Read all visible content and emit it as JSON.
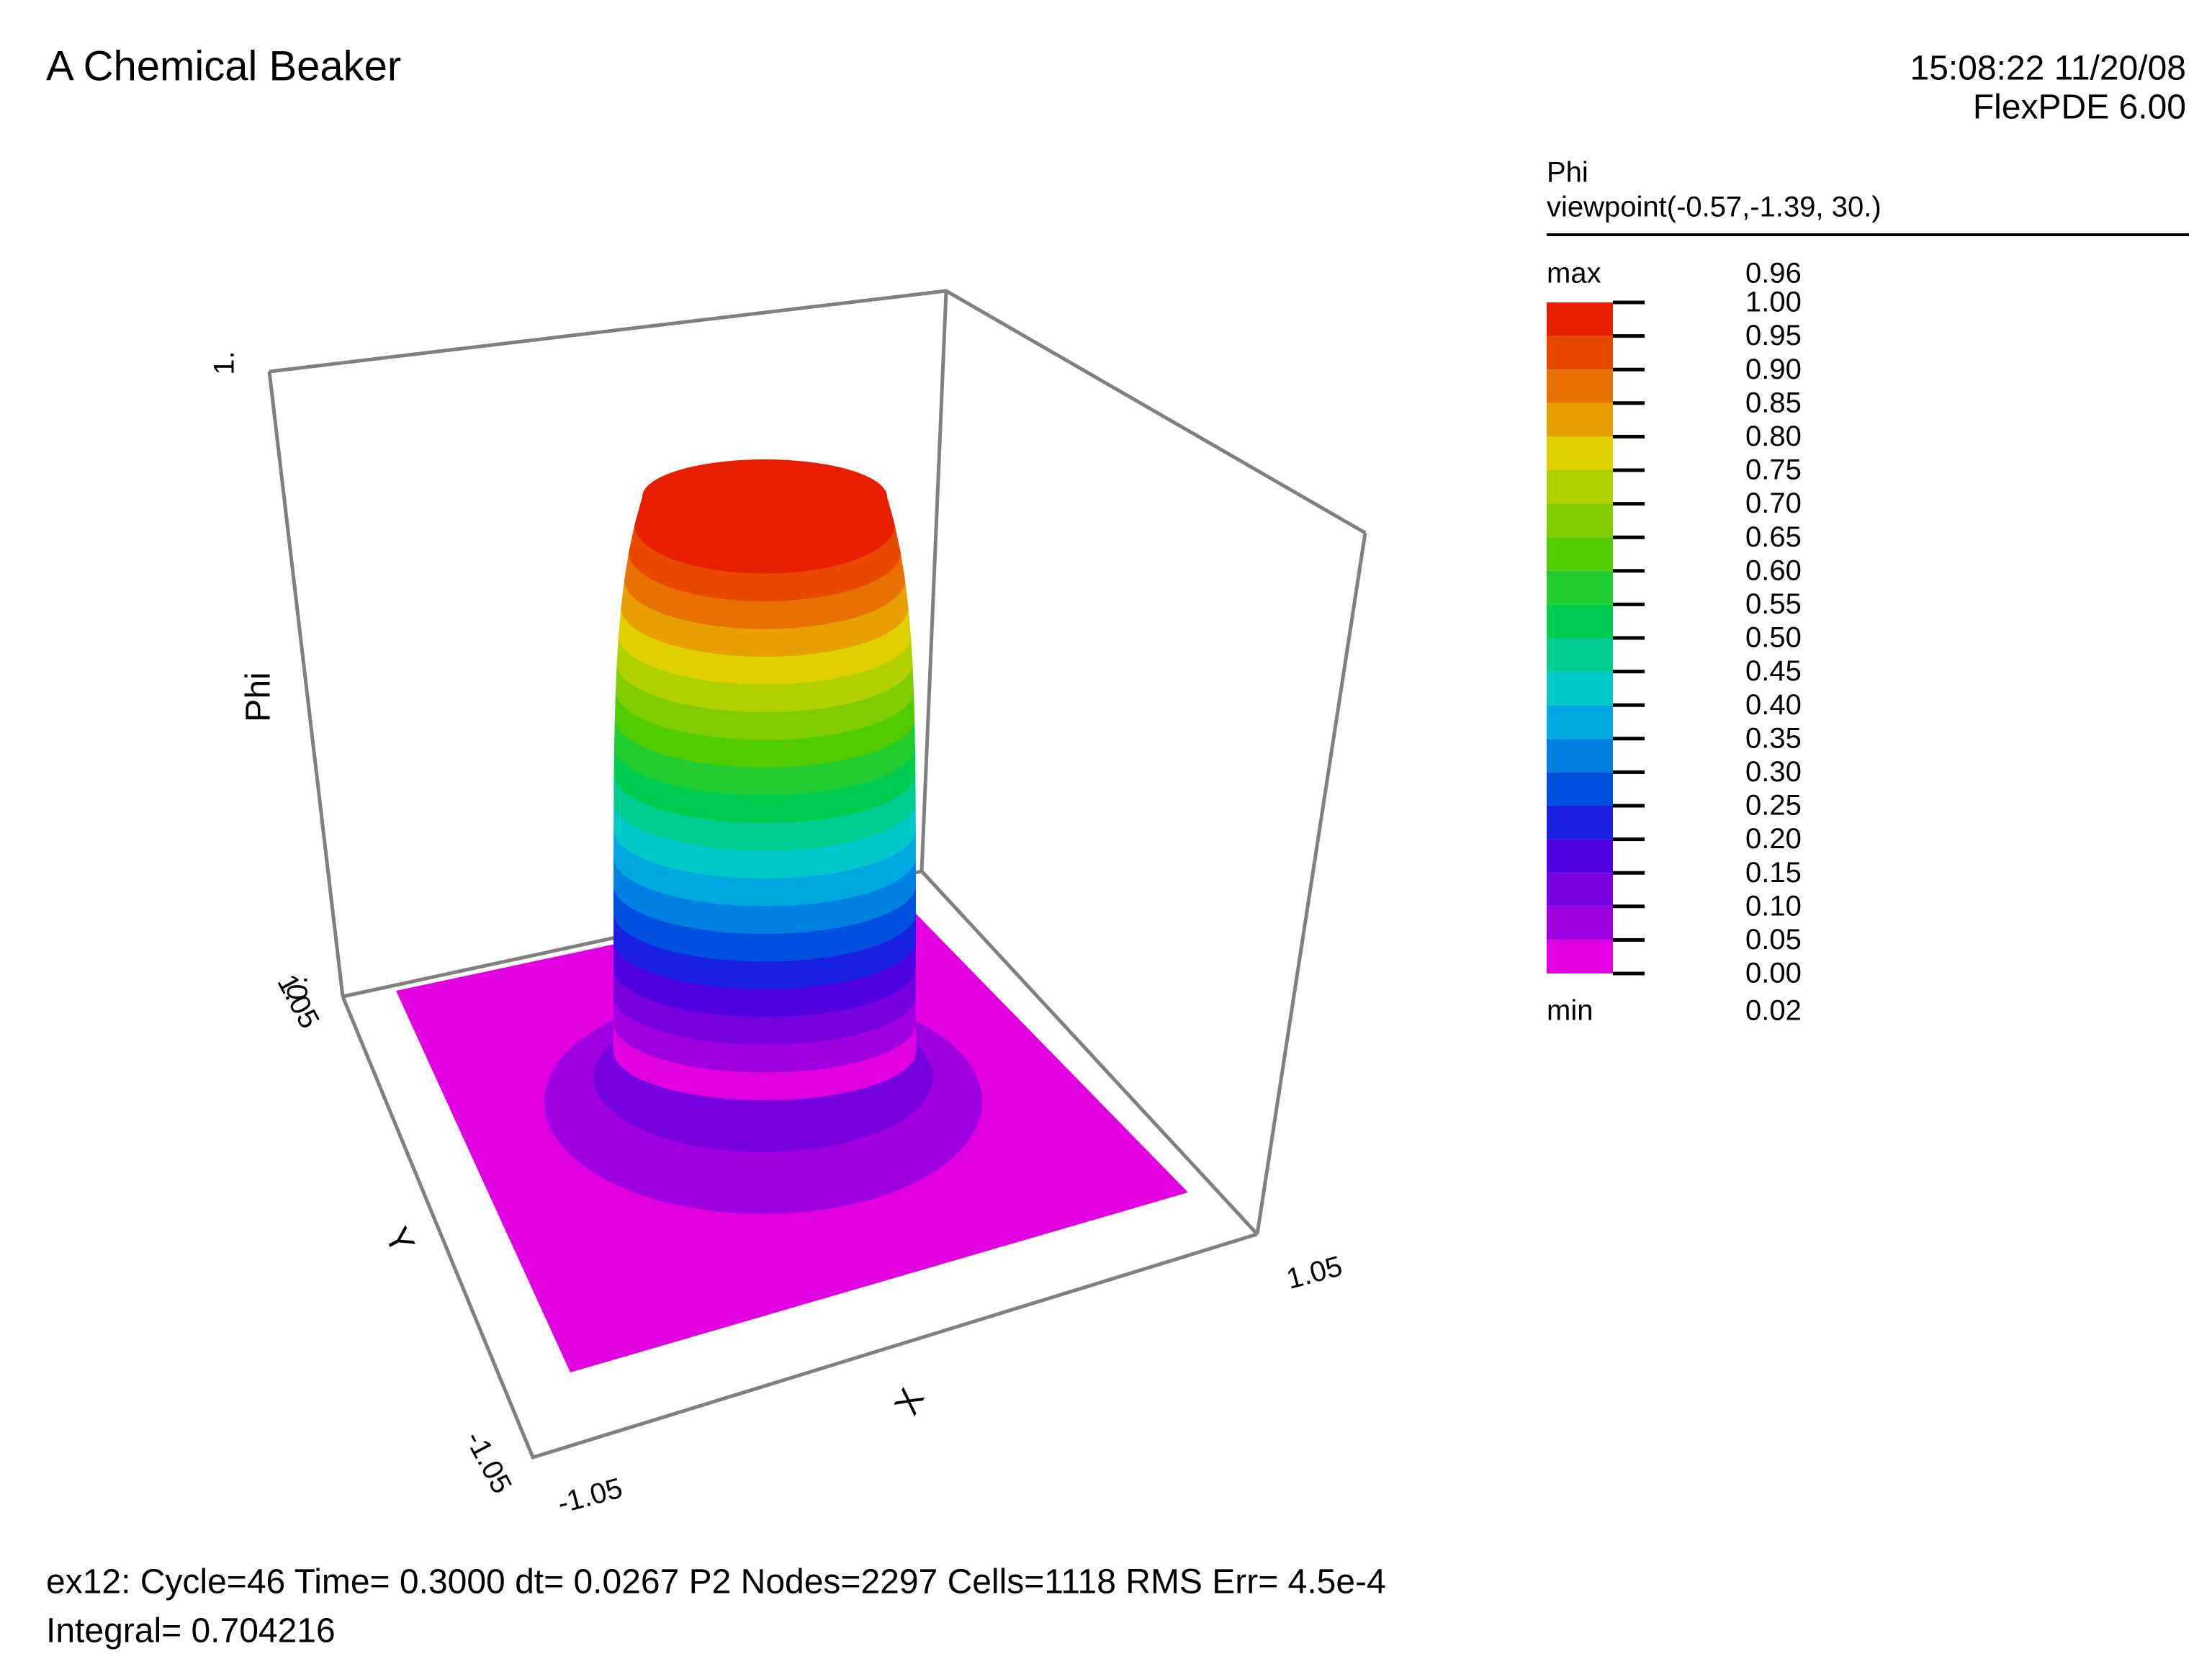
{
  "chart_data": {
    "type": "surface",
    "title": "A Chemical Beaker",
    "timestamp": "15:08:22 11/20/08",
    "software": "FlexPDE 6.00",
    "legend_title": "Phi",
    "viewpoint": "viewpoint(-0.57,-1.39, 30.)",
    "xlabel": "X",
    "ylabel": "Y",
    "zlabel": "Phi",
    "xlim": [
      -1.05,
      1.05
    ],
    "xticks": [
      -1.05,
      1.05
    ],
    "ylim": [
      -1.05,
      1.05
    ],
    "yticks": [
      -1.05,
      1.05
    ],
    "zlim": [
      0,
      1
    ],
    "zticks": [
      {
        "value": 0,
        "label": "0."
      },
      {
        "value": 1,
        "label": "1."
      }
    ],
    "max_label": "max",
    "max": 0.96,
    "min_label": "min",
    "min": 0.02,
    "levels": [
      {
        "value": 0,
        "label": "0.00"
      },
      {
        "value": 0.05,
        "label": "0.05"
      },
      {
        "value": 0.1,
        "label": "0.10"
      },
      {
        "value": 0.15,
        "label": "0.15"
      },
      {
        "value": 0.2,
        "label": "0.20"
      },
      {
        "value": 0.25,
        "label": "0.25"
      },
      {
        "value": 0.3,
        "label": "0.30"
      },
      {
        "value": 0.35,
        "label": "0.35"
      },
      {
        "value": 0.4,
        "label": "0.40"
      },
      {
        "value": 0.45,
        "label": "0.45"
      },
      {
        "value": 0.5,
        "label": "0.50"
      },
      {
        "value": 0.55,
        "label": "0.55"
      },
      {
        "value": 0.6,
        "label": "0.60"
      },
      {
        "value": 0.65,
        "label": "0.65"
      },
      {
        "value": 0.7,
        "label": "0.70"
      },
      {
        "value": 0.75,
        "label": "0.75"
      },
      {
        "value": 0.8,
        "label": "0.80"
      },
      {
        "value": 0.85,
        "label": "0.85"
      },
      {
        "value": 0.9,
        "label": "0.90"
      },
      {
        "value": 0.95,
        "label": "0.95"
      },
      {
        "value": 1,
        "label": "1.00"
      }
    ],
    "colors": [
      "#e000e0",
      "#a000e0",
      "#7800e0",
      "#5000e0",
      "#1a20e0",
      "#0050e0",
      "#0080e0",
      "#00a8e0",
      "#00c8c8",
      "#00cc90",
      "#00cc50",
      "#20cc30",
      "#50cc00",
      "#80cc00",
      "#b0d000",
      "#e0d000",
      "#e8a000",
      "#e87000",
      "#e84800",
      "#e81e00"
    ],
    "footer": [
      "ex12:  Cycle=46  Time= 0.3000  dt= 0.0267  P2  Nodes=2297 Cells=1118 RMS Err= 4.5e-4",
      "Integral=  0.704216"
    ]
  }
}
